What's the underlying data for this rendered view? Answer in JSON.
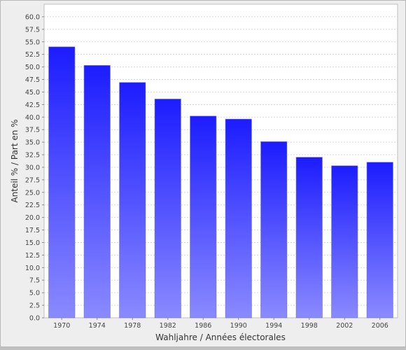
{
  "chart_data": {
    "type": "bar",
    "title": "",
    "xlabel": "Wahljahre / Années électorales",
    "ylabel": "Anteil % / Part en %",
    "ylim": [
      0,
      62.5
    ],
    "y_tick_step": 2.5,
    "y_tick_labels": [
      "0.0",
      "2.5",
      "5.0",
      "7.5",
      "10.0",
      "12.5",
      "15.0",
      "17.5",
      "20.0",
      "22.5",
      "25.0",
      "27.5",
      "30.0",
      "32.5",
      "35.0",
      "37.5",
      "40.0",
      "42.5",
      "45.0",
      "47.5",
      "50.0",
      "52.5",
      "55.0",
      "57.5",
      "60.0"
    ],
    "categories": [
      "1970",
      "1974",
      "1978",
      "1982",
      "1986",
      "1990",
      "1994",
      "1998",
      "2002",
      "2006"
    ],
    "values": [
      54.0,
      50.3,
      46.9,
      43.6,
      40.2,
      39.6,
      35.1,
      32.0,
      30.3,
      31.0
    ],
    "grid": true,
    "legend": "none",
    "colors": {
      "bar_top": "#1c1cff",
      "bar_bottom": "#8a8aff",
      "plot_background": "#ffffff",
      "page_background": "#eeeeee",
      "grid": "#d8d8d8"
    }
  }
}
